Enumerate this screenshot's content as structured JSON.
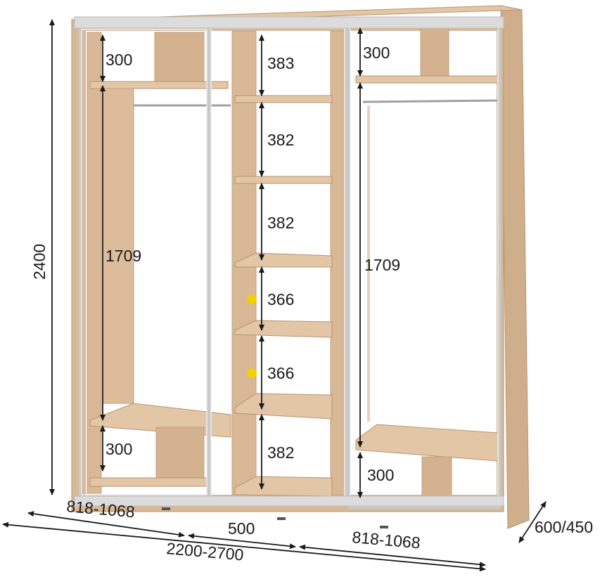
{
  "dimensions": {
    "total_height": "2400",
    "total_width": "2200-2700",
    "depth": "600/450",
    "left_section_width": "818-1068",
    "middle_section_width": "500",
    "right_section_width": "818-1068"
  },
  "left_section": {
    "top_shelf": "300",
    "hanging_space": "1709",
    "bottom_shelf": "300"
  },
  "middle_section": {
    "shelves": [
      "383",
      "382",
      "382",
      "366",
      "366",
      "382"
    ]
  },
  "right_section": {
    "top_shelf": "300",
    "hanging_space": "1709",
    "bottom_shelf": "300"
  },
  "colors": {
    "wood": "#d8b896",
    "wood_dark": "#c9a47f",
    "door_frame": "#c8c8c8",
    "marker": "#f2d000"
  }
}
